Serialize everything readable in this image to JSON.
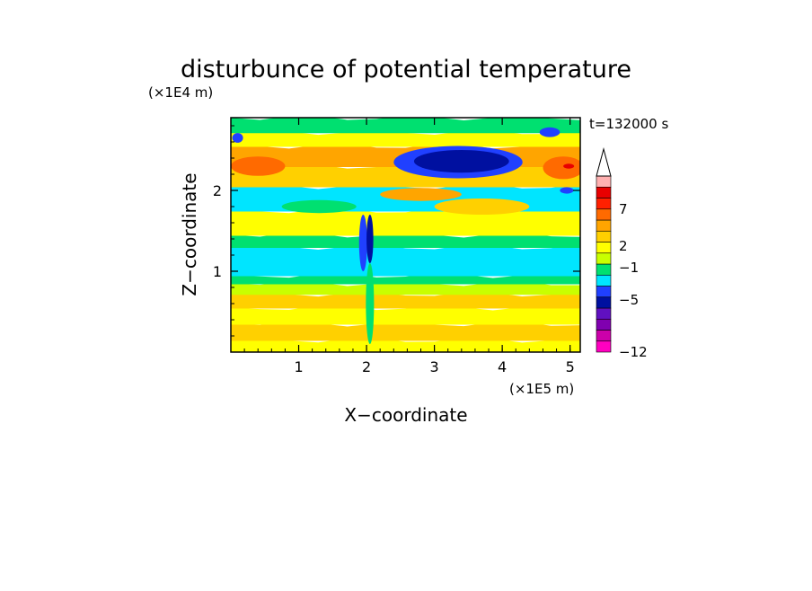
{
  "chart_data": {
    "type": "heatmap",
    "title": "disturbunce of potential temperature",
    "time_label": "t=132000 s",
    "xlabel": "X−coordinate",
    "ylabel": "Z−coordinate",
    "x_unit": "(×1E5 m)",
    "y_unit": "(×1E4 m)",
    "xlim": [
      0,
      5.15
    ],
    "ylim": [
      0,
      2.9
    ],
    "x_ticks": [
      1,
      2,
      3,
      4,
      5
    ],
    "y_ticks": [
      1,
      2
    ],
    "x_tick_labels": [
      "1",
      "2",
      "3",
      "4",
      "5"
    ],
    "y_tick_labels": [
      "1",
      "2"
    ],
    "colorbar_tick_labels": [
      "7",
      "2",
      "−1",
      "−5",
      "−12"
    ],
    "colorbar_colors": [
      "#ff00c0",
      "#cc00aa",
      "#8000b0",
      "#6010c0",
      "#0010a0",
      "#2040ff",
      "#00e5ff",
      "#00e070",
      "#c8ff00",
      "#ffff00",
      "#ffd000",
      "#ffa500",
      "#ff6a00",
      "#ff2000",
      "#e80000",
      "#ffb0b0"
    ],
    "bands": [
      {
        "z": [
          0.0,
          0.15
        ],
        "color": "#ffff00"
      },
      {
        "z": [
          0.15,
          0.35
        ],
        "color": "#ffd000"
      },
      {
        "z": [
          0.35,
          0.55
        ],
        "color": "#ffff00"
      },
      {
        "z": [
          0.55,
          0.72
        ],
        "color": "#ffd000"
      },
      {
        "z": [
          0.72,
          0.85
        ],
        "color": "#c8ff00"
      },
      {
        "z": [
          0.85,
          0.95
        ],
        "color": "#00e070"
      },
      {
        "z": [
          0.95,
          1.3
        ],
        "color": "#00e5ff"
      },
      {
        "z": [
          1.3,
          1.45
        ],
        "color": "#00e070"
      },
      {
        "z": [
          1.45,
          1.75
        ],
        "color": "#ffff00"
      },
      {
        "z": [
          1.75,
          2.05
        ],
        "color": "#00e5ff"
      },
      {
        "z": [
          2.05,
          2.3
        ],
        "color": "#ffd000"
      },
      {
        "z": [
          2.3,
          2.55
        ],
        "color": "#ffa500"
      },
      {
        "z": [
          2.55,
          2.72
        ],
        "color": "#ffff00"
      },
      {
        "z": [
          2.72,
          2.9
        ],
        "color": "#00e070"
      }
    ],
    "patches": [
      {
        "x": 3.35,
        "z": 2.35,
        "rx": 0.95,
        "rz": 0.2,
        "color": "#2040ff"
      },
      {
        "x": 3.4,
        "z": 2.36,
        "rx": 0.7,
        "rz": 0.14,
        "color": "#0010a0"
      },
      {
        "x": 4.9,
        "z": 2.28,
        "rx": 0.3,
        "rz": 0.14,
        "color": "#ff6a00"
      },
      {
        "x": 4.98,
        "z": 2.3,
        "rx": 0.08,
        "rz": 0.03,
        "color": "#e80000"
      },
      {
        "x": 4.95,
        "z": 2.0,
        "rx": 0.1,
        "rz": 0.04,
        "color": "#2040ff"
      },
      {
        "x": 0.4,
        "z": 2.3,
        "rx": 0.4,
        "rz": 0.12,
        "color": "#ff6a00"
      },
      {
        "x": 0.1,
        "z": 2.65,
        "rx": 0.08,
        "rz": 0.06,
        "color": "#2040ff"
      },
      {
        "x": 1.95,
        "z": 1.35,
        "rx": 0.06,
        "rz": 0.35,
        "color": "#2040ff"
      },
      {
        "x": 2.05,
        "z": 1.4,
        "rx": 0.05,
        "rz": 0.3,
        "color": "#0010a0"
      },
      {
        "x": 2.05,
        "z": 0.6,
        "rx": 0.06,
        "rz": 0.5,
        "color": "#00e070"
      },
      {
        "x": 2.8,
        "z": 1.95,
        "rx": 0.6,
        "rz": 0.08,
        "color": "#ffa500"
      },
      {
        "x": 3.7,
        "z": 1.8,
        "rx": 0.7,
        "rz": 0.1,
        "color": "#ffd000"
      },
      {
        "x": 1.3,
        "z": 1.8,
        "rx": 0.55,
        "rz": 0.08,
        "color": "#00e070"
      },
      {
        "x": 4.7,
        "z": 2.72,
        "rx": 0.15,
        "rz": 0.06,
        "color": "#2040ff"
      }
    ]
  }
}
